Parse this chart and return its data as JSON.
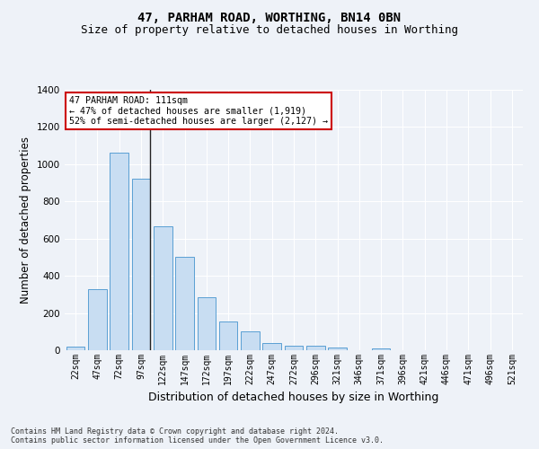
{
  "title_line1": "47, PARHAM ROAD, WORTHING, BN14 0BN",
  "title_line2": "Size of property relative to detached houses in Worthing",
  "xlabel": "Distribution of detached houses by size in Worthing",
  "ylabel": "Number of detached properties",
  "footer": "Contains HM Land Registry data © Crown copyright and database right 2024.\nContains public sector information licensed under the Open Government Licence v3.0.",
  "categories": [
    "22sqm",
    "47sqm",
    "72sqm",
    "97sqm",
    "122sqm",
    "147sqm",
    "172sqm",
    "197sqm",
    "222sqm",
    "247sqm",
    "272sqm",
    "296sqm",
    "321sqm",
    "346sqm",
    "371sqm",
    "396sqm",
    "421sqm",
    "446sqm",
    "471sqm",
    "496sqm",
    "521sqm"
  ],
  "values": [
    20,
    330,
    1060,
    920,
    665,
    500,
    285,
    155,
    100,
    38,
    22,
    22,
    15,
    0,
    10,
    0,
    0,
    0,
    0,
    0,
    0
  ],
  "bar_color": "#c8ddf2",
  "bar_edge_color": "#5a9fd4",
  "annotation_text": "47 PARHAM ROAD: 111sqm\n← 47% of detached houses are smaller (1,919)\n52% of semi-detached houses are larger (2,127) →",
  "annotation_box_color": "#ffffff",
  "annotation_box_edge_color": "#cc0000",
  "vline_bar_index": 3,
  "ylim": [
    0,
    1400
  ],
  "yticks": [
    0,
    200,
    400,
    600,
    800,
    1000,
    1200,
    1400
  ],
  "background_color": "#eef2f8",
  "grid_color": "#ffffff",
  "title_fontsize": 10,
  "subtitle_fontsize": 9,
  "axis_label_fontsize": 8.5,
  "tick_fontsize": 7,
  "footer_fontsize": 6
}
